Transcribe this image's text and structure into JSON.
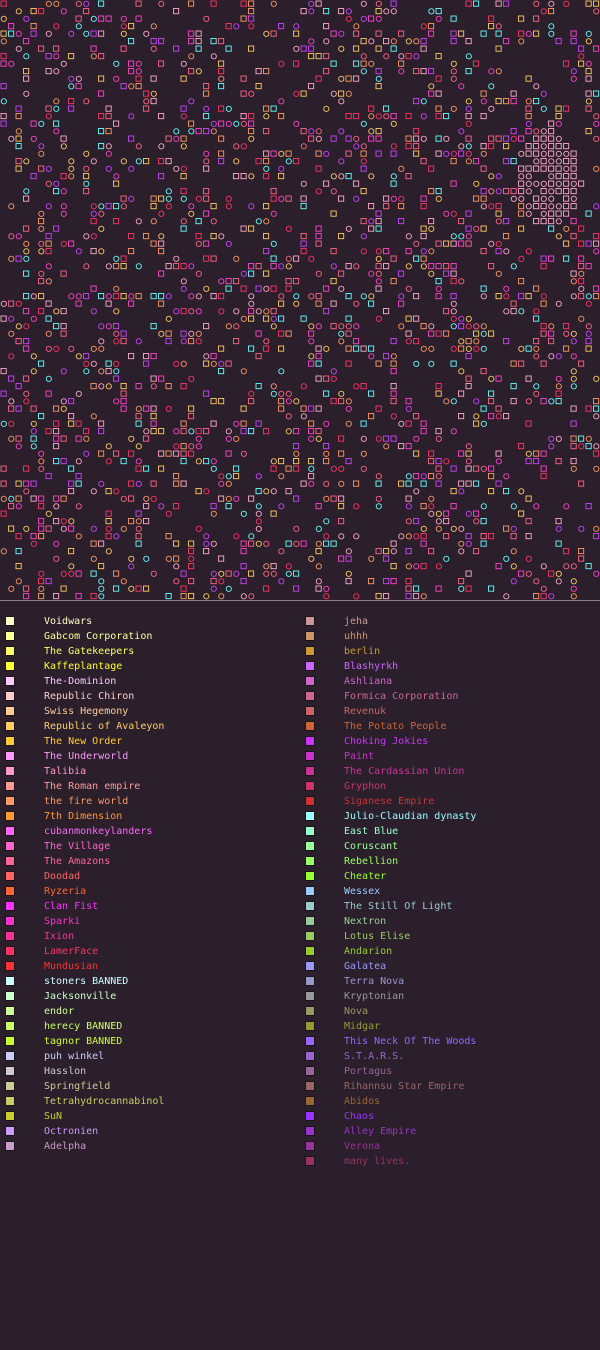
{
  "map": {
    "background": "#2a1f2a",
    "dominant_colors": [
      "#ff44cc",
      "#cc44ff",
      "#ff6688",
      "#ff9966",
      "#ffcc66",
      "#ff3366",
      "#66ffff",
      "#ffaacc"
    ]
  },
  "legend": {
    "left": [
      {
        "name": "Voidwars",
        "color": "#ffffcc"
      },
      {
        "name": "Gabcom Corporation",
        "color": "#ffff99"
      },
      {
        "name": "The Gatekeepers",
        "color": "#ffff66"
      },
      {
        "name": "Kaffeplantage",
        "color": "#ffff33"
      },
      {
        "name": "The-Dominion",
        "color": "#ffccff"
      },
      {
        "name": "Republic Chiron",
        "color": "#ffcccc"
      },
      {
        "name": "Swiss Hegemony",
        "color": "#ffcc99"
      },
      {
        "name": "Republic of Avaleyon",
        "color": "#ffcc66"
      },
      {
        "name": "The New Order",
        "color": "#ffcc33"
      },
      {
        "name": "The Underworld",
        "color": "#ff99ff"
      },
      {
        "name": "Talibia",
        "color": "#ff99cc"
      },
      {
        "name": "The Roman empire",
        "color": "#ff9999"
      },
      {
        "name": "the fire world",
        "color": "#ff9966"
      },
      {
        "name": "7th Dimension",
        "color": "#ff9933"
      },
      {
        "name": "cubanmonkeylanders",
        "color": "#ff66ff"
      },
      {
        "name": "The Village",
        "color": "#ff66cc"
      },
      {
        "name": "The Amazons",
        "color": "#ff6699"
      },
      {
        "name": "Doodad",
        "color": "#ff6666"
      },
      {
        "name": "Ryzeria",
        "color": "#ff6633"
      },
      {
        "name": "Clan Fist",
        "color": "#ff33ff"
      },
      {
        "name": "Sparki",
        "color": "#ff33cc"
      },
      {
        "name": "Ixion",
        "color": "#ff3399"
      },
      {
        "name": "LamerFace",
        "color": "#ff3366"
      },
      {
        "name": "Mundusian",
        "color": "#ff3333"
      },
      {
        "name": "stoners BANNED",
        "color": "#ccffff"
      },
      {
        "name": "Jacksonville",
        "color": "#ccffcc"
      },
      {
        "name": "endor",
        "color": "#ccff99"
      },
      {
        "name": "herecy BANNED",
        "color": "#ccff66"
      },
      {
        "name": "tagnor BANNED",
        "color": "#ccff33"
      },
      {
        "name": "puh winkel",
        "color": "#ccccff"
      },
      {
        "name": "Hasslon",
        "color": "#cccccc"
      },
      {
        "name": "Springfield",
        "color": "#cccc99"
      },
      {
        "name": "Tetrahydrocannabinol",
        "color": "#cccc66"
      },
      {
        "name": "SuN",
        "color": "#cccc33"
      },
      {
        "name": "Octronien",
        "color": "#cc99ff"
      },
      {
        "name": "Adelpha",
        "color": "#cc99cc"
      }
    ],
    "right": [
      {
        "name": "jeha",
        "color": "#cc9999"
      },
      {
        "name": "uhhh",
        "color": "#cc9966"
      },
      {
        "name": "berlin",
        "color": "#cc9933"
      },
      {
        "name": "Blashyrkh",
        "color": "#cc66ff"
      },
      {
        "name": "Ashliana",
        "color": "#cc66cc"
      },
      {
        "name": "Formica Corporation",
        "color": "#cc6699"
      },
      {
        "name": "Revenuk",
        "color": "#cc6666"
      },
      {
        "name": "The Potato People",
        "color": "#cc6633"
      },
      {
        "name": "Choking Jokies",
        "color": "#cc33ff"
      },
      {
        "name": "Paint",
        "color": "#cc33cc"
      },
      {
        "name": "The Cardassian Union",
        "color": "#cc3399"
      },
      {
        "name": "Gryphon",
        "color": "#cc3366"
      },
      {
        "name": "Siganese Empire",
        "color": "#cc3333"
      },
      {
        "name": "Julio-Claudian dynasty",
        "color": "#99ffff"
      },
      {
        "name": "East Blue",
        "color": "#99ffcc"
      },
      {
        "name": "Coruscant",
        "color": "#99ff99"
      },
      {
        "name": "Rebellion",
        "color": "#99ff66"
      },
      {
        "name": "Cheater",
        "color": "#99ff33"
      },
      {
        "name": "Wessex",
        "color": "#99ccff"
      },
      {
        "name": "The Still Of Light",
        "color": "#99cccc"
      },
      {
        "name": "Nextron",
        "color": "#99cc99"
      },
      {
        "name": "Lotus Elise",
        "color": "#99cc66"
      },
      {
        "name": "Andarion",
        "color": "#99cc33"
      },
      {
        "name": "Galatea",
        "color": "#9999ff"
      },
      {
        "name": "Terra Nova",
        "color": "#9999cc"
      },
      {
        "name": "Kryptonian",
        "color": "#999999"
      },
      {
        "name": "Nova",
        "color": "#999966"
      },
      {
        "name": "Midgar",
        "color": "#999933"
      },
      {
        "name": "This Neck Of The Woods",
        "color": "#9966ff"
      },
      {
        "name": "S.T.A.R.S.",
        "color": "#9966cc"
      },
      {
        "name": "Portagus",
        "color": "#996699"
      },
      {
        "name": "Rihannsu Star Empire",
        "color": "#996666"
      },
      {
        "name": "Abidos",
        "color": "#996633"
      },
      {
        "name": "Chaos",
        "color": "#9933ff"
      },
      {
        "name": "Alley Empire",
        "color": "#9933cc"
      },
      {
        "name": "Verona",
        "color": "#993399"
      },
      {
        "name": "many lives.",
        "color": "#993366"
      }
    ]
  }
}
